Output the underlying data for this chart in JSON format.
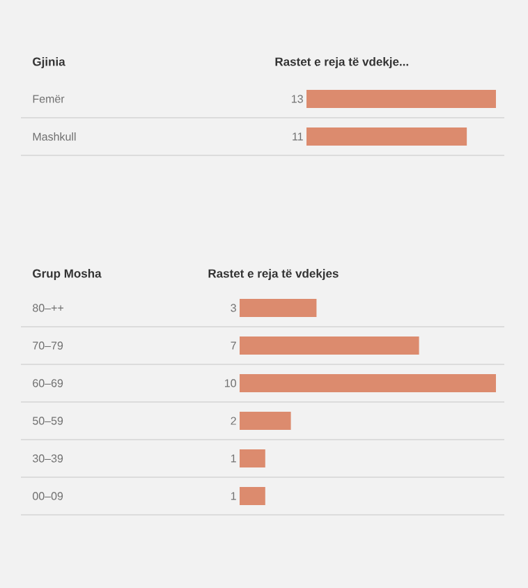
{
  "chart_data": [
    {
      "type": "bar",
      "orientation": "horizontal",
      "ylabel": "Gjinia",
      "xlabel": "Rastet e reja të vdekje...",
      "categories": [
        "Femër",
        "Mashkull"
      ],
      "values": [
        13,
        11
      ],
      "color": "#dc8b6e",
      "data_labels": true,
      "xlim": [
        0,
        13
      ]
    },
    {
      "type": "bar",
      "orientation": "horizontal",
      "ylabel": "Grup Mosha",
      "xlabel": "Rastet e reja të vdekjes",
      "categories": [
        "80–++",
        "70–79",
        "60–69",
        "50–59",
        "30–39",
        "00–09"
      ],
      "values": [
        3,
        7,
        10,
        2,
        1,
        1
      ],
      "color": "#dc8b6e",
      "data_labels": true,
      "xlim": [
        0,
        10
      ]
    }
  ]
}
